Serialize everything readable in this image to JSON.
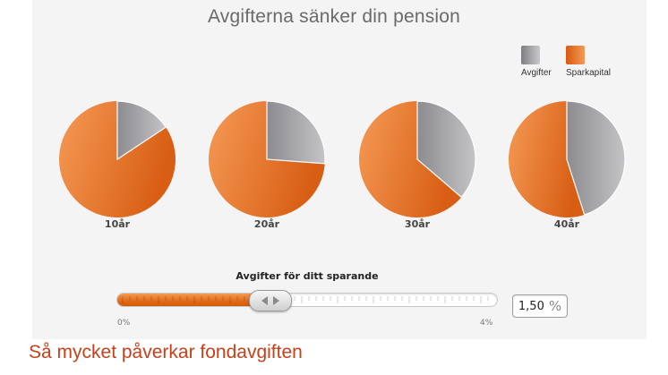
{
  "title": "Avgifterna sänker din pension",
  "legend": [
    {
      "label": "Avgifter",
      "color": "#a8a8ab"
    },
    {
      "label": "Sparkapital",
      "color": "#ef7a30"
    }
  ],
  "pies": [
    {
      "label": "10år",
      "fee_fraction": 0.157
    },
    {
      "label": "20år",
      "fee_fraction": 0.262
    },
    {
      "label": "30år",
      "fee_fraction": 0.363
    },
    {
      "label": "40år",
      "fee_fraction": 0.451
    }
  ],
  "slider": {
    "title": "Avgifter för ditt sparande",
    "min_label": "0%",
    "max_label": "4%",
    "value": 1.5,
    "min": 0,
    "max": 4,
    "display_value": "1,50",
    "unit": "%"
  },
  "caption": "Så mycket påverkar fondavgiften"
}
